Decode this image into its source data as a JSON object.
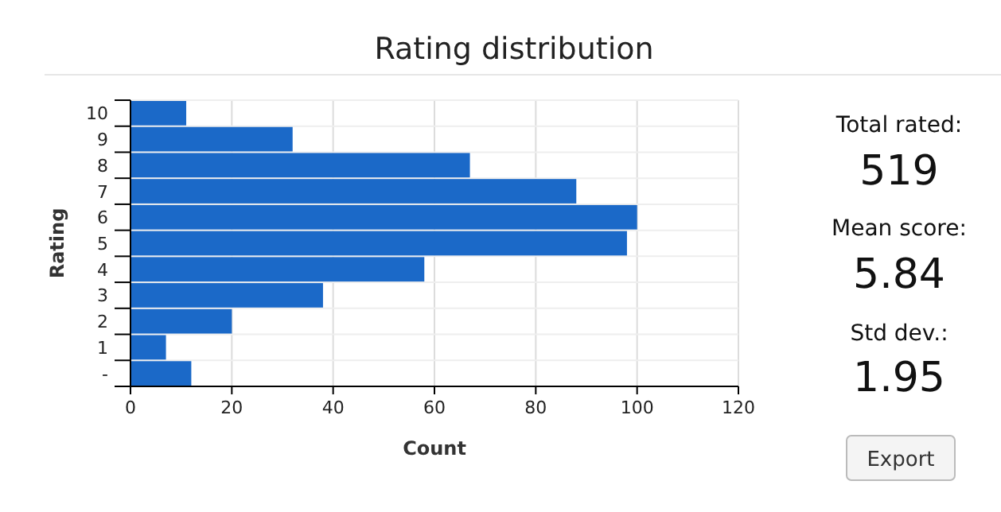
{
  "chart_data": {
    "type": "bar",
    "orientation": "horizontal",
    "title": "Rating distribution",
    "xlabel": "Count",
    "ylabel": "Rating",
    "categories": [
      "10",
      "9",
      "8",
      "7",
      "6",
      "5",
      "4",
      "3",
      "2",
      "1",
      "-"
    ],
    "values": [
      11,
      32,
      67,
      88,
      100,
      98,
      58,
      38,
      20,
      7,
      12
    ],
    "color": "#1b69c8",
    "xlim": [
      0,
      120
    ],
    "xticks": [
      0,
      20,
      40,
      60,
      80,
      100,
      120
    ],
    "grid": true,
    "annotations": [
      "Total rated:",
      "519",
      "Mean score:",
      "5.84",
      "Std dev.:",
      "1.95",
      "Export"
    ]
  }
}
